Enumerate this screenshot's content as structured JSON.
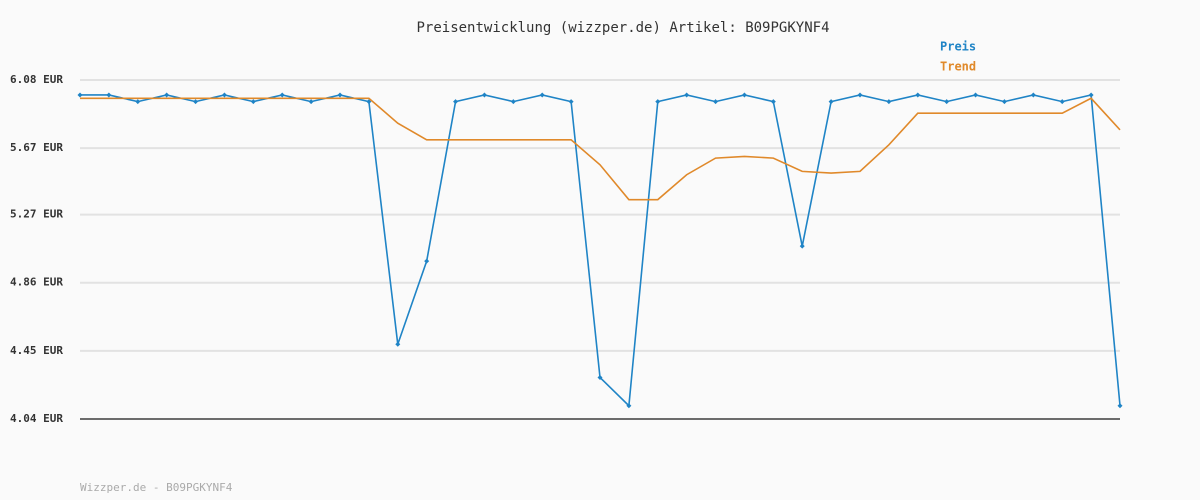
{
  "chart_data": {
    "type": "line",
    "title": "Preisentwicklung (wizzper.de) Artikel: B09PGKYNF4",
    "footer": "Wizzper.de - B09PGKYNF4",
    "ylim": [
      4.04,
      6.08
    ],
    "yticks": [
      {
        "value": 4.04,
        "label": "4.04 EUR"
      },
      {
        "value": 4.45,
        "label": "4.45 EUR"
      },
      {
        "value": 4.86,
        "label": "4.86 EUR"
      },
      {
        "value": 5.27,
        "label": "5.27 EUR"
      },
      {
        "value": 5.67,
        "label": "5.67 EUR"
      },
      {
        "value": 6.08,
        "label": "6.08 EUR"
      }
    ],
    "grid": true,
    "series": [
      {
        "name": "Preis",
        "color": "#1f84c6",
        "markers": true,
        "values": [
          5.99,
          5.99,
          5.95,
          5.99,
          5.95,
          5.99,
          5.95,
          5.99,
          5.95,
          5.99,
          5.95,
          4.49,
          4.99,
          5.95,
          5.99,
          5.95,
          5.99,
          5.95,
          4.29,
          4.12,
          5.95,
          5.99,
          5.95,
          5.99,
          5.95,
          5.08,
          5.95,
          5.99,
          5.95,
          5.99,
          5.95,
          5.99,
          5.95,
          5.99,
          5.95,
          5.99,
          4.12
        ]
      },
      {
        "name": "Trend",
        "color": "#e0892a",
        "markers": false,
        "values": [
          5.97,
          5.97,
          5.97,
          5.97,
          5.97,
          5.97,
          5.97,
          5.97,
          5.97,
          5.97,
          5.97,
          5.82,
          5.72,
          5.72,
          5.72,
          5.72,
          5.72,
          5.72,
          5.57,
          5.36,
          5.36,
          5.51,
          5.61,
          5.62,
          5.61,
          5.53,
          5.52,
          5.53,
          5.69,
          5.88,
          5.88,
          5.88,
          5.88,
          5.88,
          5.88,
          5.97,
          5.78
        ]
      }
    ]
  }
}
